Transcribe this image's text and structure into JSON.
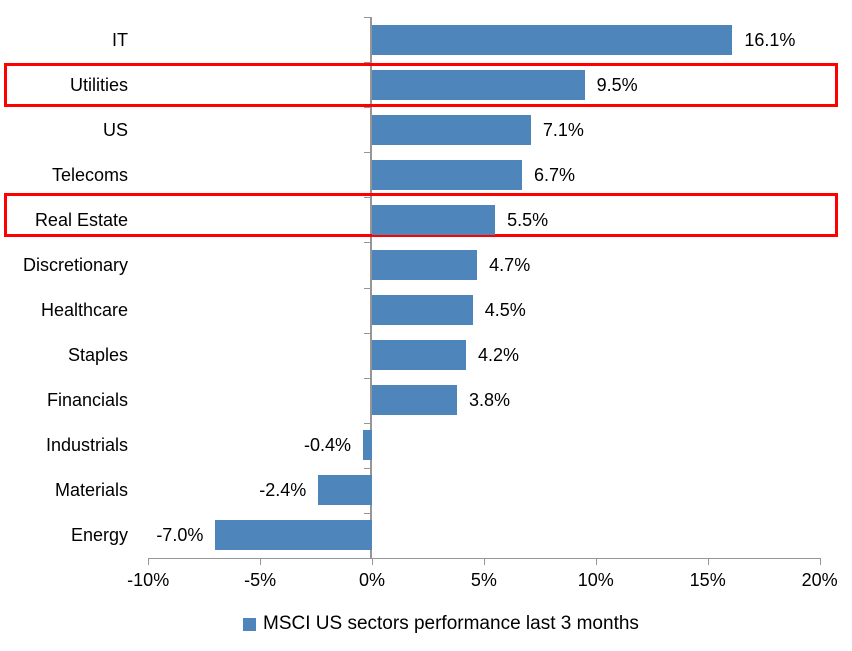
{
  "chart_data": {
    "type": "bar",
    "orientation": "horizontal",
    "title": "",
    "categories": [
      "IT",
      "Utilities",
      "US",
      "Telecoms",
      "Real Estate",
      "Discretionary",
      "Healthcare",
      "Staples",
      "Financials",
      "Industrials",
      "Materials",
      "Energy"
    ],
    "values": [
      16.1,
      9.5,
      7.1,
      6.7,
      5.5,
      4.7,
      4.5,
      4.2,
      3.8,
      -0.4,
      -2.4,
      -7.0
    ],
    "value_labels": [
      "16.1%",
      "9.5%",
      "7.1%",
      "6.7%",
      "5.5%",
      "4.7%",
      "4.5%",
      "4.2%",
      "3.8%",
      "-0.4%",
      "-2.4%",
      "-7.0%"
    ],
    "highlighted_categories": [
      "Utilities",
      "Real Estate"
    ],
    "x_axis": {
      "min": -10,
      "max": 20,
      "tick_step": 5,
      "tick_labels": [
        "-10%",
        "-5%",
        "0%",
        "5%",
        "10%",
        "15%",
        "20%"
      ]
    },
    "legend": {
      "label": "MSCI US sectors performance last 3 months",
      "position": "bottom"
    },
    "colors": {
      "bar": "#4E86BC",
      "highlight_box": "#FF0000",
      "axis": "#969696",
      "text": "#000000",
      "background": "#FFFFFF"
    },
    "grid": false
  }
}
